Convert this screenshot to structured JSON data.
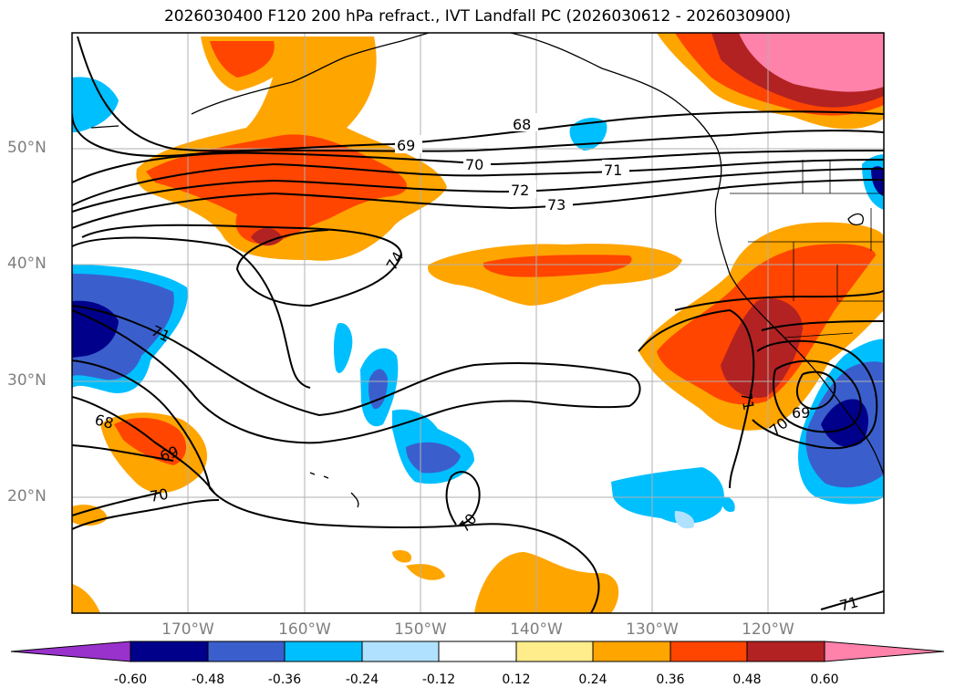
{
  "title": "2026030400 F120 200 hPa refract., IVT Landfall PC (2026030612 - 2026030900)",
  "longitude_labels": [
    "170°W",
    "160°W",
    "150°W",
    "140°W",
    "130°W",
    "120°W"
  ],
  "latitude_labels": [
    "50°N",
    "40°N",
    "30°N",
    "20°N"
  ],
  "colorbar": {
    "ticks": [
      "-0.60",
      "-0.48",
      "-0.36",
      "-0.24",
      "-0.12",
      "0.12",
      "0.24",
      "0.36",
      "0.48",
      "0.60"
    ],
    "colors": [
      "#9932cc",
      "#00008b",
      "#3a5fcd",
      "#00bfff",
      "#b0e2ff",
      "#ffffff",
      "#ffec8b",
      "#ffa500",
      "#ff4500",
      "#b22222",
      "#ff82ab"
    ]
  },
  "contour_labels": [
    "68",
    "69",
    "70",
    "71",
    "72",
    "73",
    "74",
    "71",
    "68",
    "69",
    "70",
    "70",
    "71",
    "70",
    "69",
    "71"
  ],
  "colors": {
    "land_outline": "#000000",
    "grid": "#b0b0b0",
    "contour": "#000000"
  }
}
